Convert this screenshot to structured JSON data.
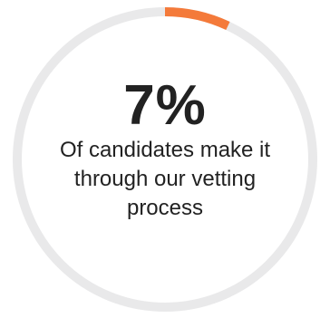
{
  "chart_data": {
    "type": "pie",
    "value_percent": 7,
    "display_value": "7%",
    "caption": "Of candidates make it through our vetting process",
    "colors": {
      "progress": "#f47a3a",
      "track": "#e9e9ea",
      "text": "#222222"
    }
  }
}
